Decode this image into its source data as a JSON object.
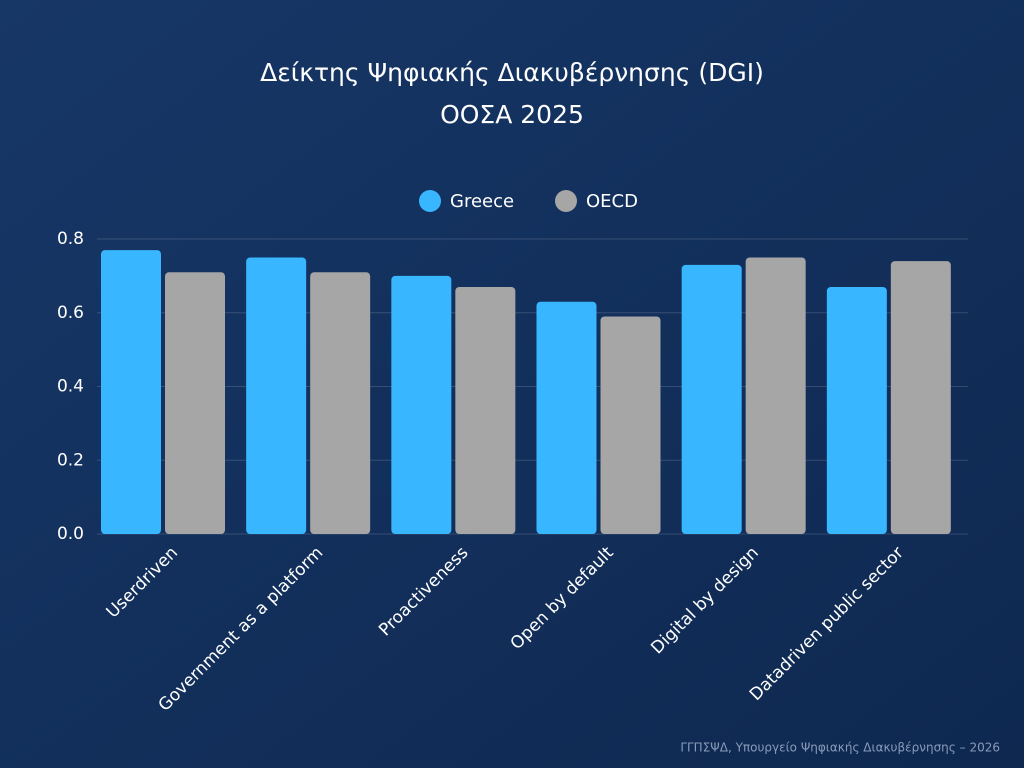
{
  "chart_data": {
    "type": "bar",
    "title": "Δείκτης Ψηφιακής Διακυβέρνησης (DGI)",
    "subtitle": "ΟΟΣΑ 2025",
    "categories": [
      "Userdriven",
      "Government as a platform",
      "Proactiveness",
      "Open by default",
      "Digital by design",
      "Datadriven public sector"
    ],
    "series": [
      {
        "name": "Greece",
        "color": "#38b6ff",
        "values": [
          0.77,
          0.75,
          0.7,
          0.63,
          0.73,
          0.67
        ]
      },
      {
        "name": "OECD",
        "color": "#a6a6a6",
        "values": [
          0.71,
          0.71,
          0.67,
          0.59,
          0.75,
          0.74
        ]
      }
    ],
    "ylim": [
      0,
      0.8
    ],
    "yticks": [
      {
        "value": 0,
        "label": "0.0"
      },
      0.2,
      0.4,
      0.6,
      0.8
    ],
    "grid": true,
    "legend": "top",
    "footer": "ΓΓΠΣΨΔ, Υπουργείο Ψηφιακής Διακυβέρνησης – 2026"
  }
}
